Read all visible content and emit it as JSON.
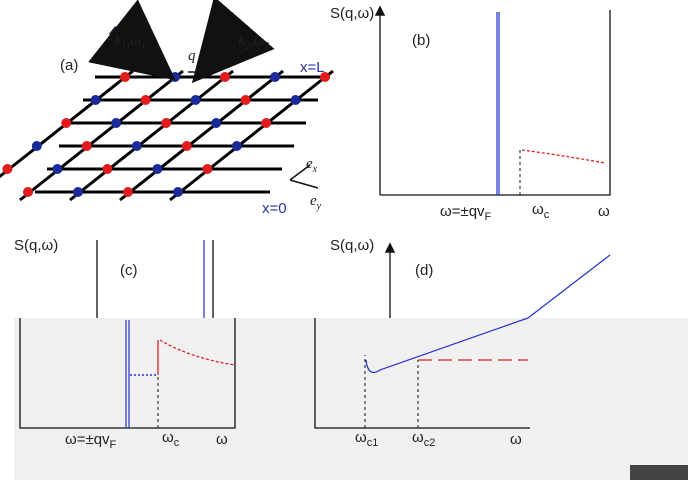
{
  "panel_a": {
    "label": "(a)",
    "k1": {
      "base": "k",
      "sub": "1",
      "omega": "ω",
      "omega_sub": "1"
    },
    "k2": {
      "base": "k",
      "sub": "2",
      "omega": "ω",
      "omega_sub": "2"
    },
    "q": "q",
    "top_edge": "x=L",
    "bottom_edge": "x=0",
    "ex": {
      "base": "e",
      "sub": "x"
    },
    "ey": {
      "base": "e",
      "sub": "y"
    }
  },
  "panel_b": {
    "ylabel": "S(q,ω)",
    "label": "(b)",
    "x1": {
      "base": "ω=±qv",
      "sub": "F"
    },
    "x2": {
      "base": "ω",
      "sub": "c"
    },
    "xlabel": "ω"
  },
  "panel_c": {
    "ylabel": "S(q,ω)",
    "label": "(c)",
    "x1": {
      "base": "ω=±qv",
      "sub": "F"
    },
    "x2": {
      "base": "ω",
      "sub": "c"
    },
    "xlabel": "ω"
  },
  "panel_d": {
    "ylabel": "S(q,ω)",
    "label": "(d)",
    "x1": {
      "base": "ω",
      "sub": "c1"
    },
    "x2": {
      "base": "ω",
      "sub": "c2"
    },
    "xlabel": "ω"
  }
}
